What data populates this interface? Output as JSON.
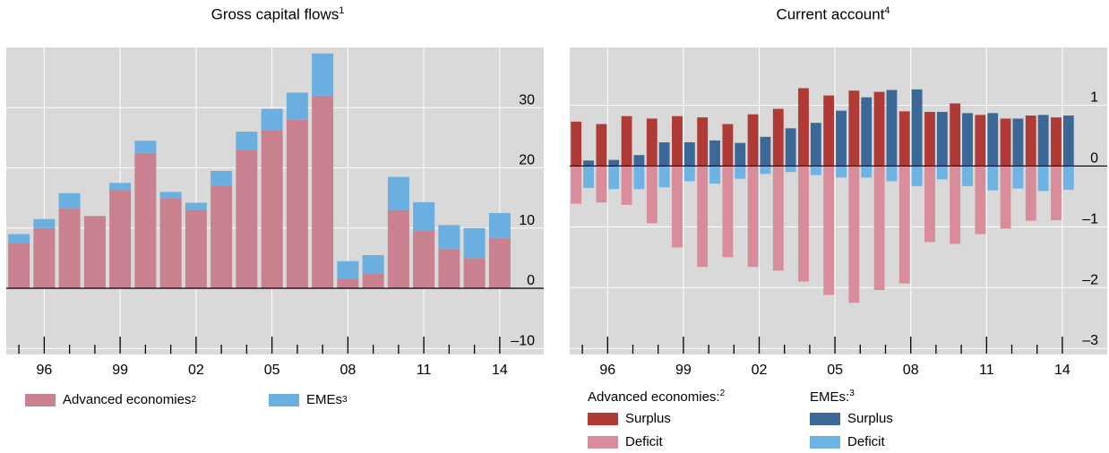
{
  "colors": {
    "plot_bg": "#d9d9d9",
    "grid": "#ffffff",
    "advanced": "#c98190",
    "emes": "#6aafdf",
    "adv_surplus": "#b03a35",
    "adv_deficit": "#d98d9a",
    "eme_surplus": "#3b6896",
    "eme_deficit": "#6fb2e4"
  },
  "left": {
    "title": "Gross capital flows",
    "title_sup": "1",
    "legend": {
      "advanced": "Advanced economies",
      "advanced_sup": "2",
      "emes": "EMEs",
      "emes_sup": "3"
    }
  },
  "right": {
    "title": "Current account",
    "title_sup": "4",
    "legend": {
      "adv_head": "Advanced economies:",
      "adv_head_sup": "2",
      "eme_head": "EMEs:",
      "eme_head_sup": "3",
      "surplus": "Surplus",
      "deficit": "Deficit"
    }
  },
  "chart_data": [
    {
      "type": "bar",
      "title": "Gross capital flows",
      "stacked": true,
      "categories": [
        "1995",
        "1996",
        "1997",
        "1998",
        "1999",
        "2000",
        "2001",
        "2002",
        "2003",
        "2004",
        "2005",
        "2006",
        "2007",
        "2008",
        "2009",
        "2010",
        "2011",
        "2012",
        "2013",
        "2014"
      ],
      "x_tick_labels": [
        "96",
        "99",
        "02",
        "05",
        "08",
        "11",
        "14"
      ],
      "y_ticks": [
        -10,
        0,
        10,
        20,
        30
      ],
      "ylim": [
        -11,
        40
      ],
      "series": [
        {
          "name": "Advanced economies",
          "values": [
            7.5,
            10,
            13.3,
            12,
            16.3,
            22.5,
            15,
            13,
            17,
            23,
            26.3,
            28,
            32,
            1.5,
            2.5,
            13,
            9.5,
            6.5,
            5,
            8.3
          ]
        },
        {
          "name": "EMEs",
          "values": [
            1.5,
            1.5,
            2.5,
            0,
            1.2,
            2,
            1,
            1.2,
            2.5,
            3,
            3.5,
            4.5,
            7,
            3,
            3,
            5.5,
            4.8,
            4,
            5,
            4.2
          ]
        }
      ]
    },
    {
      "type": "bar",
      "title": "Current account",
      "categories": [
        "1995",
        "1996",
        "1997",
        "1998",
        "1999",
        "2000",
        "2001",
        "2002",
        "2003",
        "2004",
        "2005",
        "2006",
        "2007",
        "2008",
        "2009",
        "2010",
        "2011",
        "2012",
        "2013",
        "2014"
      ],
      "x_tick_labels": [
        "96",
        "99",
        "02",
        "05",
        "08",
        "11",
        "14"
      ],
      "y_ticks": [
        -3,
        -2,
        -1,
        0,
        1
      ],
      "ylim": [
        -3.1,
        1.95
      ],
      "series": [
        {
          "name": "Surplus",
          "group": "Advanced economies",
          "values": [
            0.73,
            0.69,
            0.82,
            0.78,
            0.82,
            0.8,
            0.69,
            0.85,
            0.94,
            1.28,
            1.16,
            1.24,
            1.22,
            0.9,
            0.89,
            1.03,
            0.84,
            0.78,
            0.83,
            0.8
          ]
        },
        {
          "name": "Deficit",
          "group": "Advanced economies",
          "values": [
            -0.62,
            -0.6,
            -0.64,
            -0.94,
            -1.34,
            -1.66,
            -1.5,
            -1.66,
            -1.72,
            -1.9,
            -2.12,
            -2.25,
            -2.04,
            -1.93,
            -1.25,
            -1.28,
            -1.12,
            -1.03,
            -0.9,
            -0.89
          ]
        },
        {
          "name": "Surplus",
          "group": "EMEs",
          "values": [
            0.09,
            0.1,
            0.18,
            0.39,
            0.39,
            0.42,
            0.38,
            0.48,
            0.62,
            0.71,
            0.91,
            1.13,
            1.25,
            1.26,
            0.89,
            0.87,
            0.87,
            0.78,
            0.84,
            0.83
          ]
        },
        {
          "name": "Deficit",
          "group": "EMEs",
          "values": [
            -0.36,
            -0.38,
            -0.38,
            -0.35,
            -0.25,
            -0.29,
            -0.21,
            -0.13,
            -0.1,
            -0.15,
            -0.19,
            -0.19,
            -0.25,
            -0.33,
            -0.22,
            -0.33,
            -0.4,
            -0.37,
            -0.41,
            -0.39
          ]
        }
      ]
    }
  ]
}
